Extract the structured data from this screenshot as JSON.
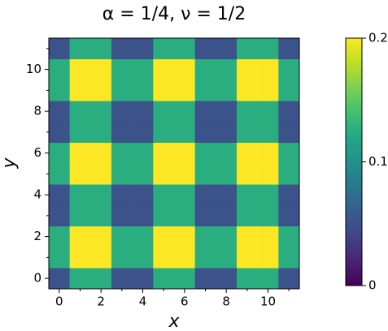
{
  "chart_data": {
    "type": "heatmap",
    "title": "α = 1/4, ν = 1/2",
    "x_label": "x",
    "y_label": "y",
    "x": [
      0,
      1,
      2,
      3,
      4,
      5,
      6,
      7,
      8,
      9,
      10,
      11
    ],
    "y": [
      0,
      1,
      2,
      3,
      4,
      5,
      6,
      7,
      8,
      9,
      10,
      11
    ],
    "z": [
      [
        0.05,
        0.125,
        0.125,
        0.05,
        0.05,
        0.125,
        0.125,
        0.05,
        0.05,
        0.125,
        0.125,
        0.05
      ],
      [
        0.125,
        0.2,
        0.2,
        0.125,
        0.125,
        0.2,
        0.2,
        0.125,
        0.125,
        0.2,
        0.2,
        0.125
      ],
      [
        0.125,
        0.2,
        0.2,
        0.125,
        0.125,
        0.2,
        0.2,
        0.125,
        0.125,
        0.2,
        0.2,
        0.125
      ],
      [
        0.05,
        0.125,
        0.125,
        0.05,
        0.05,
        0.125,
        0.125,
        0.05,
        0.05,
        0.125,
        0.125,
        0.05
      ],
      [
        0.05,
        0.125,
        0.125,
        0.05,
        0.05,
        0.125,
        0.125,
        0.05,
        0.05,
        0.125,
        0.125,
        0.05
      ],
      [
        0.125,
        0.2,
        0.2,
        0.125,
        0.125,
        0.2,
        0.2,
        0.125,
        0.125,
        0.2,
        0.2,
        0.125
      ],
      [
        0.125,
        0.2,
        0.2,
        0.125,
        0.125,
        0.2,
        0.2,
        0.125,
        0.125,
        0.2,
        0.2,
        0.125
      ],
      [
        0.05,
        0.125,
        0.125,
        0.05,
        0.05,
        0.125,
        0.125,
        0.05,
        0.05,
        0.125,
        0.125,
        0.05
      ],
      [
        0.05,
        0.125,
        0.125,
        0.05,
        0.05,
        0.125,
        0.125,
        0.05,
        0.05,
        0.125,
        0.125,
        0.05
      ],
      [
        0.125,
        0.2,
        0.2,
        0.125,
        0.125,
        0.2,
        0.2,
        0.125,
        0.125,
        0.2,
        0.2,
        0.125
      ],
      [
        0.125,
        0.2,
        0.2,
        0.125,
        0.125,
        0.2,
        0.2,
        0.125,
        0.125,
        0.2,
        0.2,
        0.125
      ],
      [
        0.05,
        0.125,
        0.125,
        0.05,
        0.05,
        0.125,
        0.125,
        0.05,
        0.05,
        0.125,
        0.125,
        0.05
      ]
    ],
    "xlim": [
      -0.5,
      11.5
    ],
    "ylim": [
      -0.5,
      11.5
    ],
    "xticks": [
      0,
      2,
      4,
      6,
      8,
      10
    ],
    "yticks": [
      0,
      2,
      4,
      6,
      8,
      10
    ],
    "xminor_ticks": [
      1,
      3,
      5,
      7,
      9,
      11
    ],
    "yminor_ticks": [
      1,
      3,
      5,
      7,
      9,
      11
    ],
    "colormap": "viridis",
    "zlim": [
      0,
      0.2
    ],
    "colorbar_ticks": [
      0,
      0.1,
      0.2
    ]
  }
}
